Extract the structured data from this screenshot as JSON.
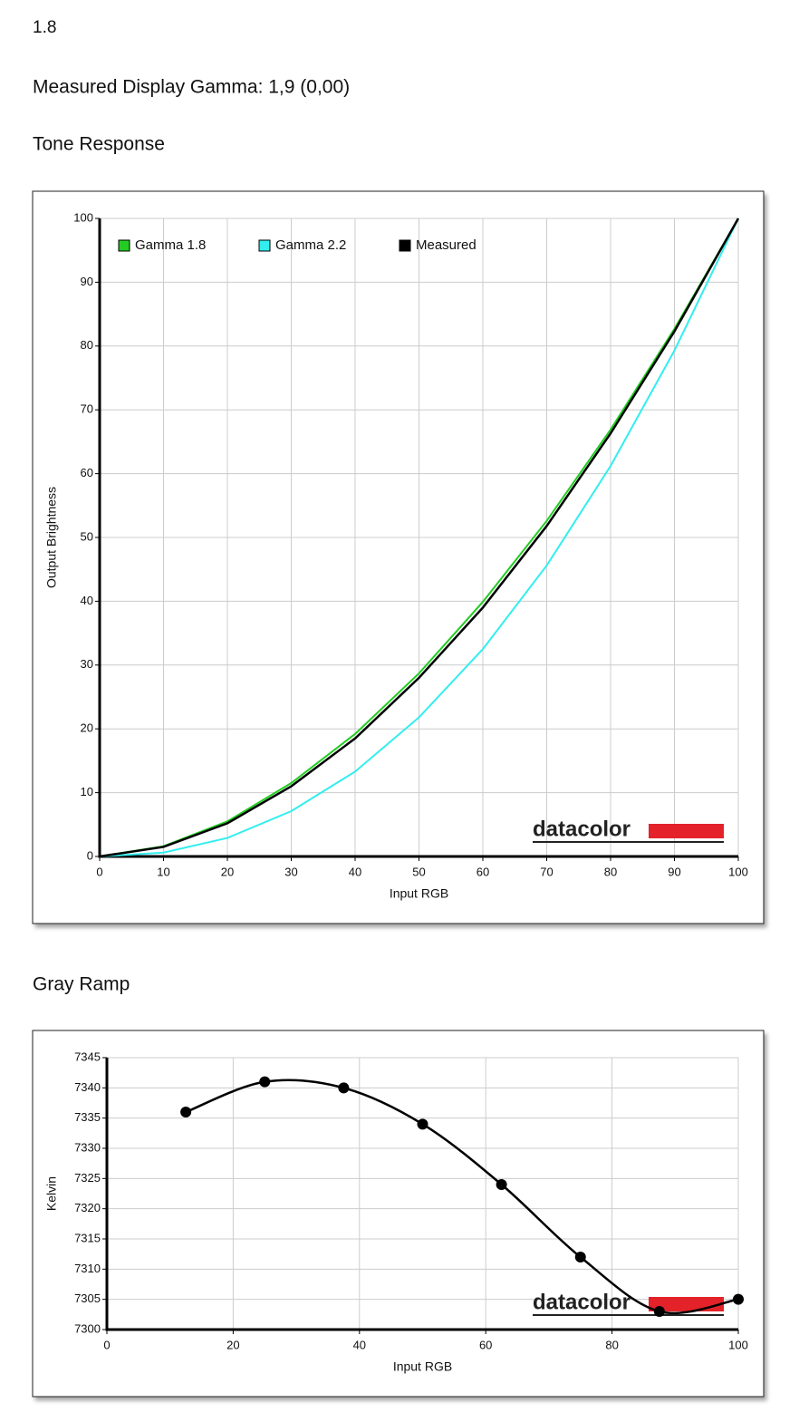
{
  "header": {
    "label": "1.8",
    "measurement": "Measured Display Gamma: 1,9 (0,00)"
  },
  "chart_data": [
    {
      "type": "line",
      "title": "Tone Response",
      "x_label": "Input RGB",
      "y_label": "Output Brightness",
      "logo": "datacolor",
      "x": [
        0,
        10,
        20,
        30,
        40,
        50,
        60,
        70,
        80,
        90,
        100
      ],
      "series": [
        {
          "name": "Gamma 1.8",
          "color": "#22cc22",
          "values": [
            0,
            1.6,
            5.5,
            11.5,
            19.2,
            28.7,
            39.9,
            52.6,
            66.9,
            82.7,
            100
          ]
        },
        {
          "name": "Gamma 2.2",
          "color": "#33eeee",
          "values": [
            0,
            0.6,
            2.9,
            7.1,
            13.3,
            21.8,
            32.5,
            45.6,
            61.2,
            79.3,
            100
          ]
        },
        {
          "name": "Measured",
          "color": "#000000",
          "values": [
            0,
            1.5,
            5.2,
            11,
            18.5,
            28,
            39,
            51.8,
            66.3,
            82.3,
            100
          ]
        }
      ],
      "xlim": [
        0,
        100
      ],
      "xticks": [
        0,
        10,
        20,
        30,
        40,
        50,
        60,
        70,
        80,
        90,
        100
      ],
      "ylim": [
        0,
        100
      ],
      "yticks": [
        0,
        10,
        20,
        30,
        40,
        50,
        60,
        70,
        80,
        90,
        100
      ],
      "grid": true,
      "legend": "top-left",
      "smooth": false,
      "markers": false
    },
    {
      "type": "line",
      "title": "Gray Ramp",
      "x_label": "Input RGB",
      "y_label": "Kelvin",
      "logo": "datacolor",
      "x": [
        12.5,
        25,
        37.5,
        50,
        62.5,
        75,
        87.5,
        100
      ],
      "series": [
        {
          "color": "#000000",
          "values": [
            7336,
            7341,
            7340,
            7334,
            7324,
            7312,
            7303,
            7305
          ]
        }
      ],
      "xlim": [
        0,
        100
      ],
      "xticks": [
        0,
        20,
        40,
        60,
        80,
        100
      ],
      "ylim": [
        7300,
        7345
      ],
      "yticks": [
        7300,
        7305,
        7310,
        7315,
        7320,
        7325,
        7330,
        7335,
        7340,
        7345
      ],
      "grid": true,
      "smooth": true,
      "markers": true
    }
  ]
}
